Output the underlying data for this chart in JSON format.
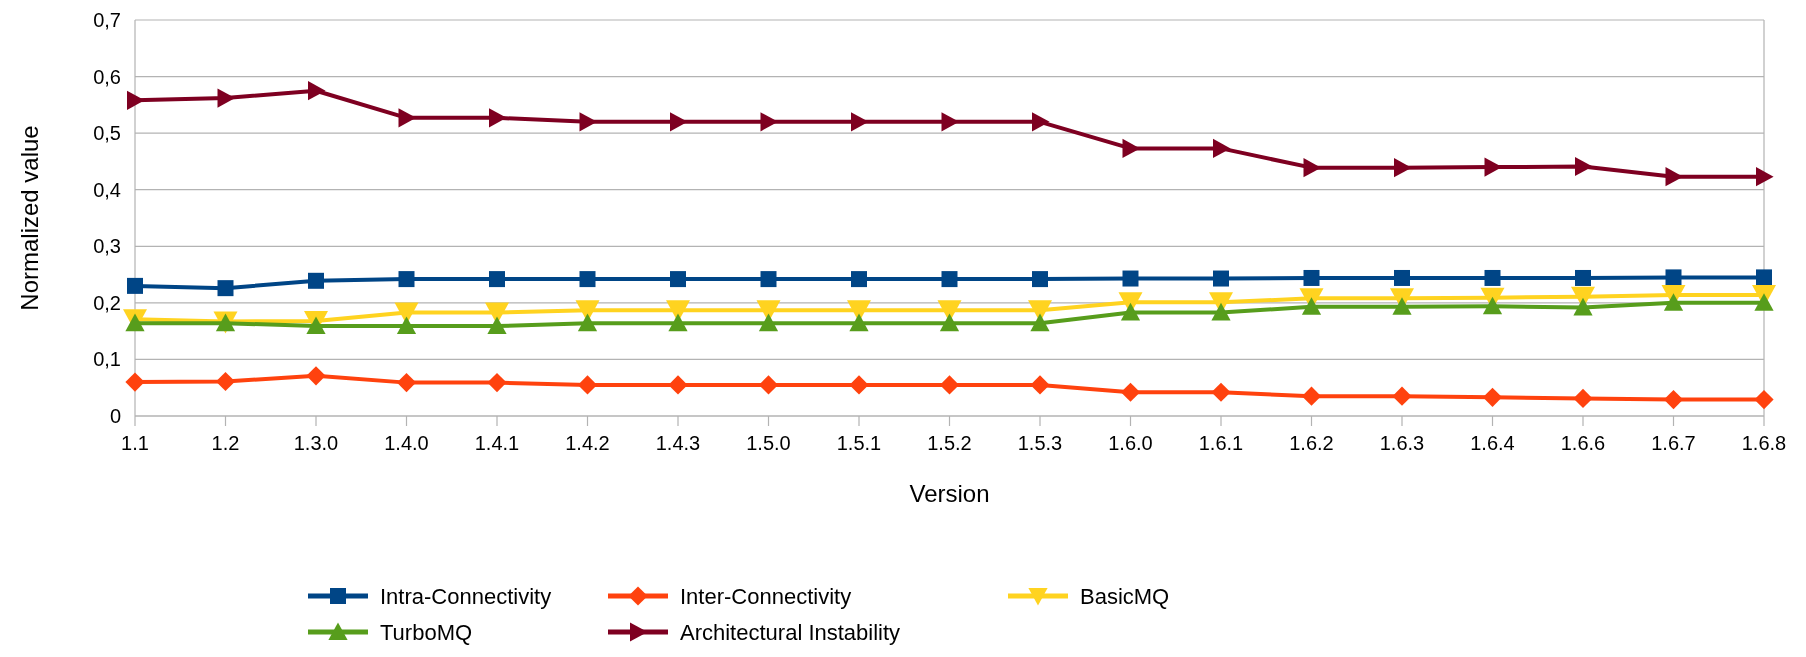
{
  "chart_data": {
    "type": "line",
    "xlabel": "Version",
    "ylabel": "Normalized value",
    "categories": [
      "1.1",
      "1.2",
      "1.3.0",
      "1.4.0",
      "1.4.1",
      "1.4.2",
      "1.4.3",
      "1.5.0",
      "1.5.1",
      "1.5.2",
      "1.5.3",
      "1.6.0",
      "1.6.1",
      "1.6.2",
      "1.6.3",
      "1.6.4",
      "1.6.6",
      "1.6.7",
      "1.6.8"
    ],
    "ylim": [
      0,
      0.7
    ],
    "yticks": [
      0,
      {
        "value": 0.1,
        "label": "0,1"
      },
      {
        "value": 0.2,
        "label": "0,2"
      },
      {
        "value": 0.3,
        "label": "0,3"
      },
      {
        "value": 0.4,
        "label": "0,4"
      },
      {
        "value": 0.5,
        "label": "0,5"
      },
      {
        "value": 0.6,
        "label": "0,6"
      },
      {
        "value": 0.7,
        "label": "0,7"
      }
    ],
    "grid": "y",
    "legend": "bottom",
    "line_style": "solid",
    "series": [
      {
        "name": "Intra-Connectivity",
        "color": "#004586",
        "marker": "square",
        "values": [
          0.23,
          0.226,
          0.239,
          0.242,
          0.242,
          0.242,
          0.242,
          0.242,
          0.242,
          0.242,
          0.242,
          0.243,
          0.243,
          0.244,
          0.244,
          0.244,
          0.244,
          0.245,
          0.245
        ]
      },
      {
        "name": "Inter-Connectivity",
        "color": "#ff420e",
        "marker": "diamond",
        "values": [
          0.06,
          0.061,
          0.071,
          0.059,
          0.059,
          0.055,
          0.055,
          0.055,
          0.055,
          0.055,
          0.055,
          0.042,
          0.042,
          0.035,
          0.035,
          0.033,
          0.031,
          0.029,
          0.029
        ]
      },
      {
        "name": "BasicMQ",
        "color": "#ffd320",
        "marker": "triangle-down",
        "values": [
          0.171,
          0.167,
          0.168,
          0.183,
          0.183,
          0.187,
          0.187,
          0.187,
          0.187,
          0.187,
          0.187,
          0.201,
          0.201,
          0.208,
          0.208,
          0.209,
          0.211,
          0.214,
          0.214
        ]
      },
      {
        "name": "TurboMQ",
        "color": "#579d1c",
        "marker": "triangle",
        "values": [
          0.164,
          0.164,
          0.159,
          0.159,
          0.159,
          0.164,
          0.164,
          0.164,
          0.164,
          0.164,
          0.164,
          0.183,
          0.183,
          0.193,
          0.193,
          0.194,
          0.192,
          0.2,
          0.2
        ]
      },
      {
        "name": "Architectural Instability",
        "color": "#7e0021",
        "marker": "triangle-right",
        "values": [
          0.558,
          0.562,
          0.575,
          0.527,
          0.527,
          0.52,
          0.52,
          0.52,
          0.52,
          0.52,
          0.52,
          0.473,
          0.473,
          0.439,
          0.439,
          0.44,
          0.441,
          0.423,
          0.423
        ]
      }
    ]
  }
}
